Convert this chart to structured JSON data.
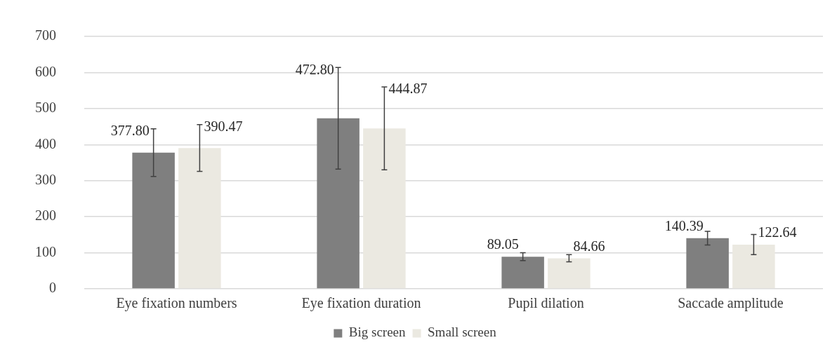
{
  "chart_data": {
    "type": "bar",
    "categories": [
      "Eye fixation numbers",
      "Eye fixation duration",
      "Pupil dilation",
      "Saccade amplitude"
    ],
    "series": [
      {
        "name": "Big screen",
        "color": "#7f7f7f",
        "values": [
          377.8,
          472.8,
          89.05,
          140.39
        ],
        "value_labels": [
          "377.80",
          "472.80",
          "89.05",
          "140.39"
        ],
        "errors": [
          66,
          141,
          11,
          19
        ]
      },
      {
        "name": "Small screen",
        "color": "#ebe9e1",
        "values": [
          390.47,
          444.87,
          84.66,
          122.64
        ],
        "value_labels": [
          "390.47",
          "444.87",
          "84.66",
          "122.64"
        ],
        "errors": [
          65,
          115,
          10,
          28
        ]
      }
    ],
    "ylim": [
      0,
      700
    ],
    "yticks": [
      0,
      100,
      200,
      300,
      400,
      500,
      600,
      700
    ],
    "grid": "y",
    "legend": "bottom"
  }
}
